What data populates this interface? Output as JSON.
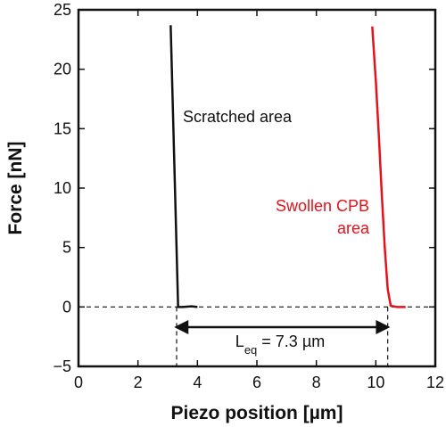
{
  "chart_data": {
    "type": "line",
    "xlabel": "Piezo position [µm]",
    "ylabel": "Force [nN]",
    "xlim": [
      0,
      12
    ],
    "xticks": [
      0,
      2,
      4,
      6,
      8,
      10,
      12
    ],
    "ylim": [
      -5,
      25
    ],
    "yticks": [
      {
        "value": -5,
        "label": "−5"
      },
      0,
      5,
      10,
      15,
      20,
      25
    ],
    "series": [
      {
        "color": "#111111",
        "x": [
          3.1,
          3.35,
          3.5,
          3.8,
          4.0
        ],
        "values": [
          23.7,
          0,
          0,
          0.05,
          0
        ]
      },
      {
        "color": "#e3121b",
        "x": [
          9.88,
          10.0,
          10.1,
          10.2,
          10.3,
          10.4,
          10.5,
          10.7,
          11.0
        ],
        "values": [
          23.6,
          19,
          14.5,
          9.5,
          5,
          1.5,
          0.1,
          0,
          0
        ]
      }
    ],
    "annotations": {
      "scratched": "Scratched area",
      "swollen": [
        "Swollen CPB",
        "area"
      ],
      "swollen_color": "#e3121b",
      "distance": {
        "parts": [
          "L",
          "eq",
          " = 7.3 µm"
        ],
        "from": 3.3,
        "to": 10.4
      },
      "baseline": 0
    }
  }
}
